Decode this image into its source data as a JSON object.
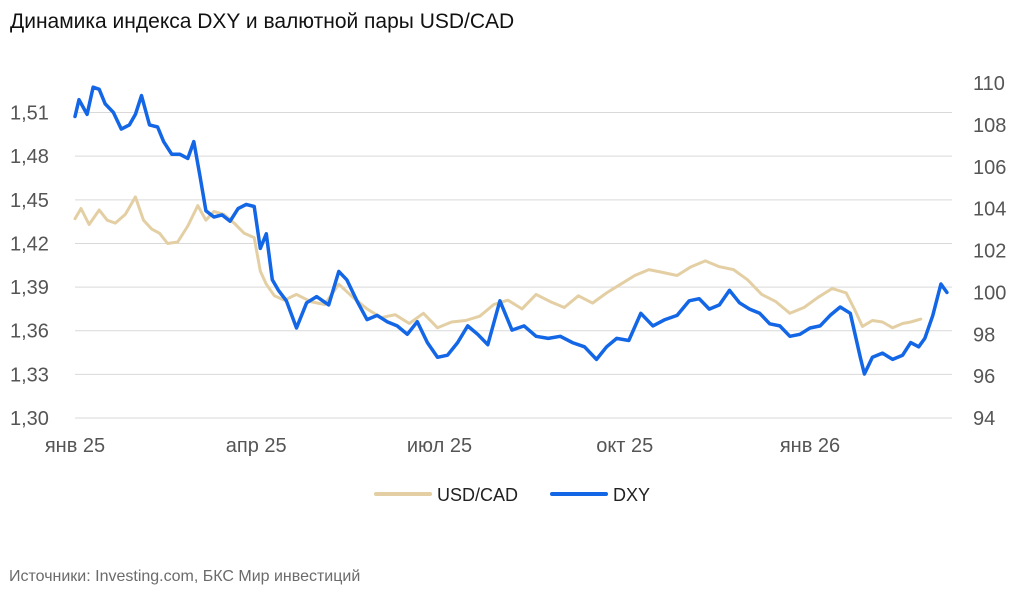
{
  "colors": {
    "usd_cad": "#e3cfa3",
    "dxy": "#1366e6",
    "grid": "#d9d9d9",
    "tick_text": "#555555"
  },
  "source": "Источники: Investing.com, БКС Мир инвестиций",
  "chart_data": {
    "type": "line",
    "title": "Динамика индекса DXY и валютной пары USD/CAD",
    "x_label": "",
    "x_range": [
      "2025-01-01",
      "2026-02-28"
    ],
    "x_ticks": [
      {
        "date": "2025-01-01",
        "label": "янв 25"
      },
      {
        "date": "2025-04-01",
        "label": "апр 25"
      },
      {
        "date": "2025-07-01",
        "label": "июл 25"
      },
      {
        "date": "2025-10-01",
        "label": "окт 25"
      },
      {
        "date": "2026-01-01",
        "label": "янв 26"
      }
    ],
    "left_axis": {
      "ylim": [
        1.3,
        1.52
      ],
      "ticks": [
        "1,30",
        "1,33",
        "1,36",
        "1,39",
        "1,42",
        "1,45",
        "1,48",
        "1,51"
      ]
    },
    "right_axis": {
      "ylim": [
        94,
        110
      ],
      "ticks": [
        "94",
        "96",
        "98",
        "100",
        "102",
        "104",
        "106",
        "108",
        "110"
      ]
    },
    "grid": true,
    "legend_position": "bottom-center",
    "series": [
      {
        "name": "USD/CAD",
        "axis": "left",
        "color": "#e3cfa3",
        "points": [
          [
            "2025-01-01",
            1.437
          ],
          [
            "2025-01-04",
            1.444
          ],
          [
            "2025-01-08",
            1.433
          ],
          [
            "2025-01-13",
            1.443
          ],
          [
            "2025-01-17",
            1.436
          ],
          [
            "2025-01-21",
            1.434
          ],
          [
            "2025-01-26",
            1.44
          ],
          [
            "2025-01-31",
            1.452
          ],
          [
            "2025-02-04",
            1.436
          ],
          [
            "2025-02-08",
            1.43
          ],
          [
            "2025-02-12",
            1.427
          ],
          [
            "2025-02-16",
            1.42
          ],
          [
            "2025-02-21",
            1.421
          ],
          [
            "2025-02-26",
            1.432
          ],
          [
            "2025-03-03",
            1.446
          ],
          [
            "2025-03-07",
            1.436
          ],
          [
            "2025-03-11",
            1.442
          ],
          [
            "2025-03-16",
            1.44
          ],
          [
            "2025-03-21",
            1.434
          ],
          [
            "2025-03-26",
            1.427
          ],
          [
            "2025-03-31",
            1.424
          ],
          [
            "2025-04-03",
            1.401
          ],
          [
            "2025-04-06",
            1.392
          ],
          [
            "2025-04-10",
            1.384
          ],
          [
            "2025-04-15",
            1.381
          ],
          [
            "2025-04-21",
            1.385
          ],
          [
            "2025-04-28",
            1.38
          ],
          [
            "2025-05-05",
            1.378
          ],
          [
            "2025-05-12",
            1.392
          ],
          [
            "2025-05-19",
            1.383
          ],
          [
            "2025-05-26",
            1.375
          ],
          [
            "2025-06-02",
            1.369
          ],
          [
            "2025-06-09",
            1.371
          ],
          [
            "2025-06-16",
            1.365
          ],
          [
            "2025-06-23",
            1.372
          ],
          [
            "2025-06-30",
            1.362
          ],
          [
            "2025-07-07",
            1.366
          ],
          [
            "2025-07-14",
            1.367
          ],
          [
            "2025-07-21",
            1.37
          ],
          [
            "2025-07-28",
            1.378
          ],
          [
            "2025-08-04",
            1.381
          ],
          [
            "2025-08-11",
            1.375
          ],
          [
            "2025-08-18",
            1.385
          ],
          [
            "2025-08-25",
            1.38
          ],
          [
            "2025-09-01",
            1.376
          ],
          [
            "2025-09-08",
            1.384
          ],
          [
            "2025-09-15",
            1.379
          ],
          [
            "2025-09-22",
            1.386
          ],
          [
            "2025-09-29",
            1.392
          ],
          [
            "2025-10-06",
            1.398
          ],
          [
            "2025-10-13",
            1.402
          ],
          [
            "2025-10-20",
            1.4
          ],
          [
            "2025-10-27",
            1.398
          ],
          [
            "2025-11-03",
            1.404
          ],
          [
            "2025-11-10",
            1.408
          ],
          [
            "2025-11-17",
            1.404
          ],
          [
            "2025-11-24",
            1.402
          ],
          [
            "2025-12-01",
            1.395
          ],
          [
            "2025-12-08",
            1.385
          ],
          [
            "2025-12-15",
            1.38
          ],
          [
            "2025-12-22",
            1.372
          ],
          [
            "2025-12-29",
            1.376
          ],
          [
            "2026-01-05",
            1.383
          ],
          [
            "2026-01-12",
            1.389
          ],
          [
            "2026-01-19",
            1.386
          ],
          [
            "2026-01-23",
            1.375
          ],
          [
            "2026-01-27",
            1.363
          ],
          [
            "2026-02-01",
            1.367
          ],
          [
            "2026-02-06",
            1.366
          ],
          [
            "2026-02-11",
            1.362
          ],
          [
            "2026-02-16",
            1.365
          ],
          [
            "2026-02-20",
            1.366
          ],
          [
            "2026-02-25",
            1.368
          ]
        ]
      },
      {
        "name": "DXY",
        "axis": "right",
        "color": "#1366e6",
        "points": [
          [
            "2025-01-01",
            108.4
          ],
          [
            "2025-01-03",
            109.2
          ],
          [
            "2025-01-07",
            108.5
          ],
          [
            "2025-01-10",
            109.8
          ],
          [
            "2025-01-13",
            109.7
          ],
          [
            "2025-01-16",
            109.0
          ],
          [
            "2025-01-20",
            108.6
          ],
          [
            "2025-01-24",
            107.8
          ],
          [
            "2025-01-28",
            108.0
          ],
          [
            "2025-01-31",
            108.5
          ],
          [
            "2025-02-03",
            109.4
          ],
          [
            "2025-02-07",
            108.0
          ],
          [
            "2025-02-11",
            107.9
          ],
          [
            "2025-02-14",
            107.2
          ],
          [
            "2025-02-18",
            106.6
          ],
          [
            "2025-02-22",
            106.6
          ],
          [
            "2025-02-26",
            106.4
          ],
          [
            "2025-03-01",
            107.2
          ],
          [
            "2025-03-04",
            105.6
          ],
          [
            "2025-03-07",
            103.9
          ],
          [
            "2025-03-11",
            103.6
          ],
          [
            "2025-03-15",
            103.7
          ],
          [
            "2025-03-19",
            103.4
          ],
          [
            "2025-03-23",
            104.0
          ],
          [
            "2025-03-27",
            104.2
          ],
          [
            "2025-03-31",
            104.1
          ],
          [
            "2025-04-03",
            102.1
          ],
          [
            "2025-04-06",
            102.8
          ],
          [
            "2025-04-09",
            100.6
          ],
          [
            "2025-04-12",
            100.1
          ],
          [
            "2025-04-16",
            99.6
          ],
          [
            "2025-04-21",
            98.3
          ],
          [
            "2025-04-26",
            99.5
          ],
          [
            "2025-05-01",
            99.8
          ],
          [
            "2025-05-07",
            99.4
          ],
          [
            "2025-05-12",
            101.0
          ],
          [
            "2025-05-16",
            100.6
          ],
          [
            "2025-05-21",
            99.6
          ],
          [
            "2025-05-26",
            98.7
          ],
          [
            "2025-05-31",
            98.9
          ],
          [
            "2025-06-05",
            98.6
          ],
          [
            "2025-06-10",
            98.4
          ],
          [
            "2025-06-15",
            98.0
          ],
          [
            "2025-06-20",
            98.6
          ],
          [
            "2025-06-25",
            97.6
          ],
          [
            "2025-06-30",
            96.9
          ],
          [
            "2025-07-05",
            97.0
          ],
          [
            "2025-07-10",
            97.6
          ],
          [
            "2025-07-15",
            98.4
          ],
          [
            "2025-07-20",
            98.0
          ],
          [
            "2025-07-25",
            97.5
          ],
          [
            "2025-07-31",
            99.6
          ],
          [
            "2025-08-06",
            98.2
          ],
          [
            "2025-08-12",
            98.4
          ],
          [
            "2025-08-18",
            97.9
          ],
          [
            "2025-08-24",
            97.8
          ],
          [
            "2025-08-30",
            97.9
          ],
          [
            "2025-09-05",
            97.6
          ],
          [
            "2025-09-11",
            97.4
          ],
          [
            "2025-09-17",
            96.8
          ],
          [
            "2025-09-22",
            97.4
          ],
          [
            "2025-09-27",
            97.8
          ],
          [
            "2025-10-03",
            97.7
          ],
          [
            "2025-10-09",
            99.0
          ],
          [
            "2025-10-15",
            98.4
          ],
          [
            "2025-10-21",
            98.7
          ],
          [
            "2025-10-27",
            98.9
          ],
          [
            "2025-11-02",
            99.6
          ],
          [
            "2025-11-07",
            99.7
          ],
          [
            "2025-11-12",
            99.2
          ],
          [
            "2025-11-17",
            99.4
          ],
          [
            "2025-11-22",
            100.1
          ],
          [
            "2025-11-27",
            99.5
          ],
          [
            "2025-12-02",
            99.2
          ],
          [
            "2025-12-07",
            99.0
          ],
          [
            "2025-12-12",
            98.5
          ],
          [
            "2025-12-17",
            98.4
          ],
          [
            "2025-12-22",
            97.9
          ],
          [
            "2025-12-27",
            98.0
          ],
          [
            "2026-01-01",
            98.3
          ],
          [
            "2026-01-06",
            98.4
          ],
          [
            "2026-01-11",
            98.9
          ],
          [
            "2026-01-16",
            99.3
          ],
          [
            "2026-01-21",
            99.0
          ],
          [
            "2026-01-26",
            96.9
          ],
          [
            "2026-01-28",
            96.1
          ],
          [
            "2026-02-01",
            96.9
          ],
          [
            "2026-02-06",
            97.1
          ],
          [
            "2026-02-11",
            96.8
          ],
          [
            "2026-02-16",
            97.0
          ],
          [
            "2026-02-20",
            97.6
          ],
          [
            "2026-02-24",
            97.4
          ],
          [
            "2026-02-27",
            97.8
          ],
          [
            "2026-03-03",
            98.9
          ],
          [
            "2026-03-07",
            100.4
          ],
          [
            "2026-03-10",
            100.0
          ]
        ]
      }
    ]
  }
}
